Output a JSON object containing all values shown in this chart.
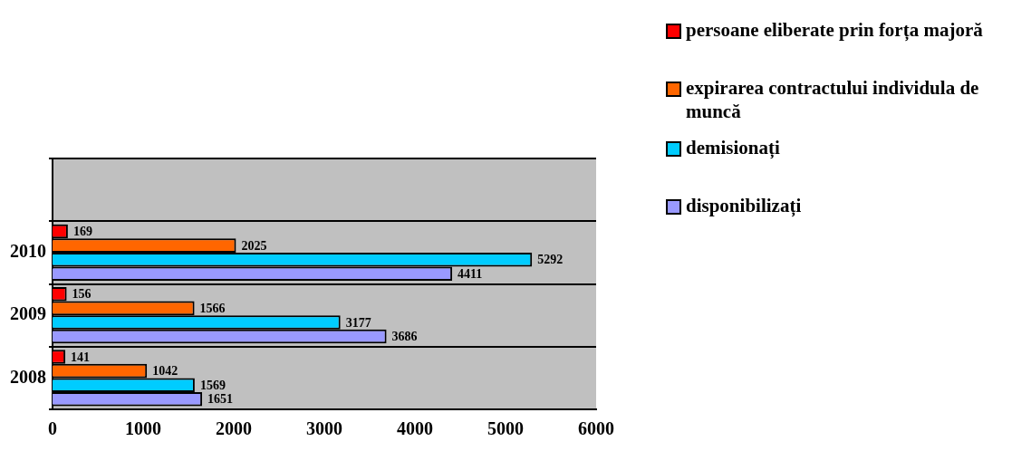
{
  "chart_data": {
    "type": "bar",
    "orientation": "horizontal",
    "categories": [
      null,
      "2010",
      "2009",
      "2008"
    ],
    "series": [
      {
        "name": "persoane eliberate prin forța majoră",
        "color": "#ff0000",
        "values": [
          null,
          169,
          156,
          141
        ]
      },
      {
        "name": "expirarea  contractului individula de muncă",
        "color": "#ff6600",
        "values": [
          null,
          2025,
          1566,
          1042
        ]
      },
      {
        "name": "demisionați",
        "color": "#00ccff",
        "values": [
          null,
          5292,
          3177,
          1569
        ]
      },
      {
        "name": "disponibilizați",
        "color": "#9999ff",
        "values": [
          null,
          4411,
          3686,
          1651
        ]
      }
    ],
    "xlim": [
      0,
      6000
    ],
    "xticks": [
      0,
      1000,
      2000,
      3000,
      4000,
      5000,
      6000
    ],
    "grid": "y",
    "legend": "top right",
    "data_labels": true
  }
}
